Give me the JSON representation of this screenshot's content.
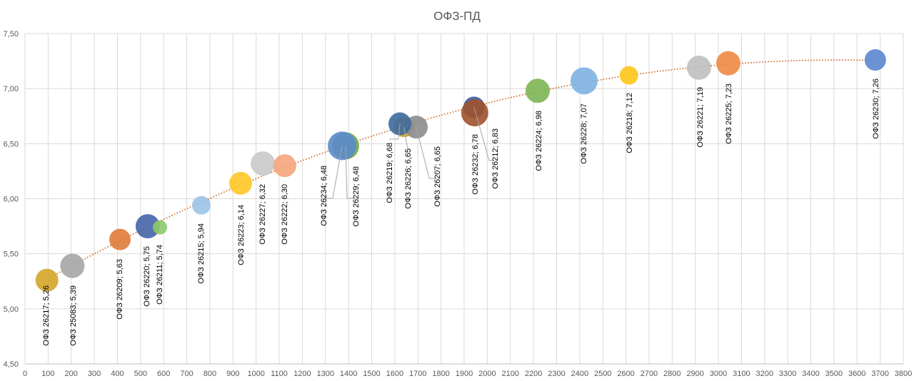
{
  "chart_data": {
    "type": "scatter",
    "subtype": "bubble",
    "title": "ОФЗ-ПД",
    "xlabel": "",
    "ylabel": "",
    "xlim": [
      0,
      3800
    ],
    "ylim": [
      4.5,
      7.5
    ],
    "x_ticks": [
      "0",
      "100",
      "200",
      "300",
      "400",
      "500",
      "600",
      "700",
      "800",
      "900",
      "1000",
      "1100",
      "1200",
      "1300",
      "1400",
      "1500",
      "1600",
      "1700",
      "1800",
      "1900",
      "2000",
      "2100",
      "2200",
      "2300",
      "2400",
      "2500",
      "2600",
      "2700",
      "2800",
      "2900",
      "3000",
      "3100",
      "3200",
      "3300",
      "3400",
      "3500",
      "3600",
      "3700",
      "3800"
    ],
    "y_ticks": [
      "4,50",
      "5,00",
      "5,50",
      "6,00",
      "6,50",
      "7,00",
      "7,50"
    ],
    "grid": true,
    "trendline": {
      "type": "polynomial",
      "color": "#C55A11"
    },
    "points": [
      {
        "name": "ОФЗ 26217",
        "x": 95,
        "y": 5.26,
        "size": 16,
        "color": "#D4A52A",
        "label": "ОФЗ 26217; 5,26"
      },
      {
        "name": "ОФЗ 25083",
        "x": 205,
        "y": 5.39,
        "size": 17,
        "color": "#A5A5A5",
        "label": "ОФЗ 25083; 5,39"
      },
      {
        "name": "ОФЗ 26209",
        "x": 411,
        "y": 5.63,
        "size": 15,
        "color": "#E07B39",
        "label": "ОФЗ 26209; 5,63"
      },
      {
        "name": "ОФЗ 26220",
        "x": 531,
        "y": 5.75,
        "size": 17,
        "color": "#4565A8",
        "label": "ОФЗ 26220; 5,75"
      },
      {
        "name": "ОФЗ 26211",
        "x": 584,
        "y": 5.74,
        "size": 10,
        "color": "#8CC96A",
        "label": "ОФЗ 26211; 5,74"
      },
      {
        "name": "ОФЗ 26215",
        "x": 763,
        "y": 5.94,
        "size": 13,
        "color": "#9DC3E6",
        "label": "ОФЗ 26215; 5,94"
      },
      {
        "name": "ОФЗ 26223",
        "x": 933,
        "y": 6.14,
        "size": 16,
        "color": "#FFC727",
        "label": "ОФЗ 26223; 6,14"
      },
      {
        "name": "ОФЗ 26227",
        "x": 1029,
        "y": 6.32,
        "size": 17,
        "color": "#C9C9C9",
        "label": "ОФЗ 26227; 6,32"
      },
      {
        "name": "ОФЗ 26222",
        "x": 1124,
        "y": 6.3,
        "size": 16,
        "color": "#F4A57A",
        "label": "ОФЗ 26222; 6,30"
      },
      {
        "name": "ОФЗ 26229",
        "x": 1387,
        "y": 6.48,
        "size": 19,
        "color": "#6FA84A",
        "label": "ОФЗ 26229; 6,48"
      },
      {
        "name": "ОФЗ 26234",
        "x": 1372,
        "y": 6.48,
        "size": 20,
        "color": "#5B8BCB",
        "label": "ОФЗ 26234; 6,48"
      },
      {
        "name": "ОФЗ 26226",
        "x": 1640,
        "y": 6.65,
        "size": 14,
        "color": "#C9A227",
        "label": "ОФЗ 26226; 6,65"
      },
      {
        "name": "ОФЗ 26207",
        "x": 1693,
        "y": 6.65,
        "size": 16,
        "color": "#8C8C8C",
        "label": "ОФЗ 26207; 6,65"
      },
      {
        "name": "ОФЗ 26219",
        "x": 1622,
        "y": 6.68,
        "size": 16,
        "color": "#3E6A9E",
        "label": "ОФЗ 26219; 6,68"
      },
      {
        "name": "ОФЗ 26212",
        "x": 1943,
        "y": 6.83,
        "size": 15,
        "color": "#3A5C9A",
        "label": "ОФЗ 26212; 6,83"
      },
      {
        "name": "ОФЗ 26232",
        "x": 1946,
        "y": 6.78,
        "size": 19,
        "color": "#A0522D",
        "label": "ОФЗ 26232; 6,78"
      },
      {
        "name": "ОФЗ 26224",
        "x": 2218,
        "y": 6.98,
        "size": 17,
        "color": "#7DB555",
        "label": "ОФЗ 26224; 6,98"
      },
      {
        "name": "ОФЗ 26228",
        "x": 2419,
        "y": 7.07,
        "size": 19,
        "color": "#7EB1E3",
        "label": "ОФЗ 26228; 7,07"
      },
      {
        "name": "ОФЗ 26218",
        "x": 2613,
        "y": 7.12,
        "size": 13,
        "color": "#FFC61A",
        "label": "ОФЗ 26218; 7,12"
      },
      {
        "name": "ОФЗ 26221",
        "x": 2916,
        "y": 7.19,
        "size": 17,
        "color": "#BFBFBF",
        "label": "ОФЗ 26221; 7,19"
      },
      {
        "name": "ОФЗ 26225",
        "x": 3043,
        "y": 7.23,
        "size": 17,
        "color": "#EE8A45",
        "label": "ОФЗ 26225; 7,23"
      },
      {
        "name": "ОФЗ 26230",
        "x": 3679,
        "y": 7.26,
        "size": 15,
        "color": "#5A86CF",
        "label": "ОФЗ 26230; 7,26"
      }
    ]
  }
}
